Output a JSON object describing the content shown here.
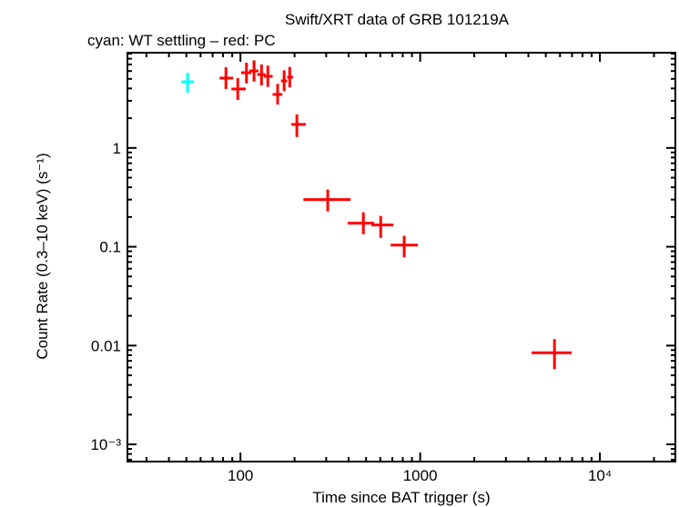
{
  "chart_data": {
    "type": "scatter",
    "title": "Swift/XRT data of GRB 101219A",
    "subtitle": "cyan: WT settling – red: PC",
    "xlabel": "Time since BAT trigger (s)",
    "ylabel": "Count Rate (0.3–10 keV) (s⁻¹)",
    "xscale": "log",
    "yscale": "log",
    "xlim": [
      23.5,
      26300
    ],
    "ylim": [
      0.00067,
      9.2
    ],
    "grid": false,
    "x_tick_labels": [
      {
        "value": 100,
        "label": "100"
      },
      {
        "value": 1000,
        "label": "1000"
      },
      {
        "value": 10000,
        "label": "10⁴"
      }
    ],
    "y_tick_labels": [
      {
        "value": 1,
        "label": "1"
      },
      {
        "value": 0.1,
        "label": "0.1"
      },
      {
        "value": 0.01,
        "label": "0.01"
      },
      {
        "value": 0.001,
        "label": "10⁻³"
      }
    ],
    "series": [
      {
        "color": "#00ffff",
        "points": [
          {
            "x": 50.8,
            "xlo": 46.9,
            "xhi": 55.2,
            "y": 4.67,
            "ylo": 3.63,
            "yhi": 5.77
          }
        ]
      },
      {
        "color": "#ff0000",
        "points": [
          {
            "x": 83,
            "xlo": 76.5,
            "xhi": 91.1,
            "y": 5.09,
            "ylo": 3.95,
            "yhi": 6.55
          },
          {
            "x": 96.6,
            "xlo": 89,
            "xhi": 107,
            "y": 3.95,
            "ylo": 3.06,
            "yhi": 5.09
          },
          {
            "x": 108,
            "xlo": 101,
            "xhi": 115,
            "y": 5.77,
            "ylo": 4.5,
            "yhi": 7.3
          },
          {
            "x": 119,
            "xlo": 112,
            "xhi": 126,
            "y": 6.02,
            "ylo": 4.7,
            "yhi": 7.7
          },
          {
            "x": 131,
            "xlo": 124,
            "xhi": 138,
            "y": 5.53,
            "ylo": 4.3,
            "yhi": 7.0
          },
          {
            "x": 142,
            "xlo": 135,
            "xhi": 151,
            "y": 5.31,
            "ylo": 4.15,
            "yhi": 6.8
          },
          {
            "x": 161,
            "xlo": 151,
            "xhi": 171,
            "y": 3.48,
            "ylo": 2.75,
            "yhi": 4.45
          },
          {
            "x": 175,
            "xlo": 168,
            "xhi": 182,
            "y": 4.77,
            "ylo": 3.75,
            "yhi": 6.1
          },
          {
            "x": 188,
            "xlo": 182,
            "xhi": 196,
            "y": 5.2,
            "ylo": 4.1,
            "yhi": 6.6
          },
          {
            "x": 206,
            "xlo": 192,
            "xhi": 231,
            "y": 1.73,
            "ylo": 1.29,
            "yhi": 2.18
          },
          {
            "x": 306,
            "xlo": 224,
            "xhi": 410,
            "y": 0.3,
            "ylo": 0.228,
            "yhi": 0.379
          },
          {
            "x": 483,
            "xlo": 395,
            "xhi": 555,
            "y": 0.173,
            "ylo": 0.134,
            "yhi": 0.223
          },
          {
            "x": 603,
            "xlo": 536,
            "xhi": 710,
            "y": 0.166,
            "ylo": 0.123,
            "yhi": 0.205
          },
          {
            "x": 815,
            "xlo": 685,
            "xhi": 971,
            "y": 0.104,
            "ylo": 0.078,
            "yhi": 0.129
          },
          {
            "x": 5590,
            "xlo": 4170,
            "xhi": 6970,
            "y": 0.00845,
            "ylo": 0.00577,
            "yhi": 0.0116
          }
        ]
      }
    ]
  }
}
